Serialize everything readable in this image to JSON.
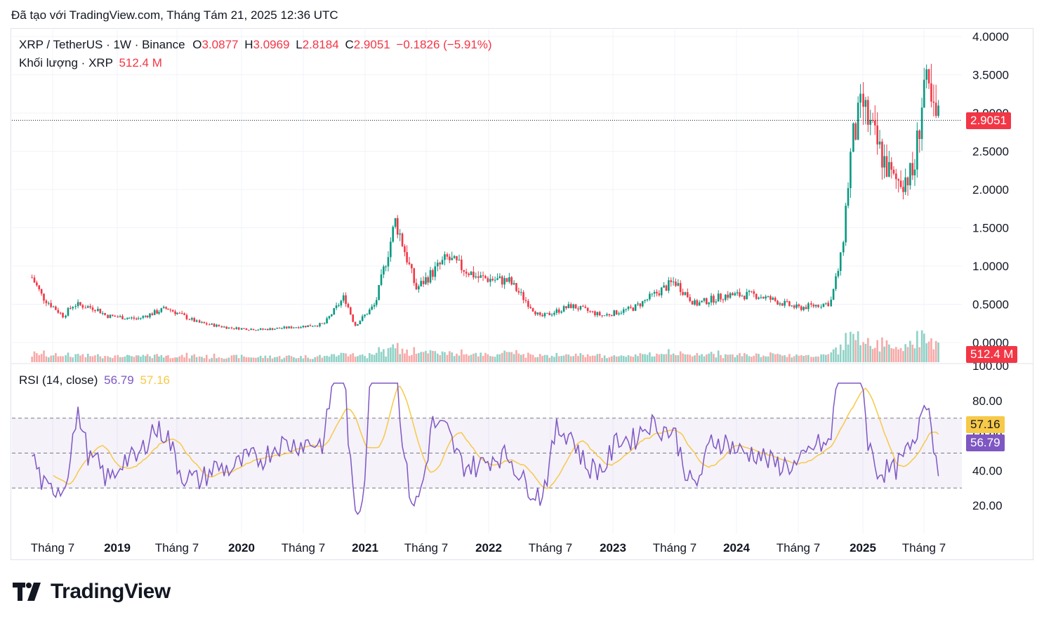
{
  "caption": "Đã tạo với TradingView.com, Tháng Tám 21, 2025 12:36 UTC",
  "legend": {
    "symbol": "XRP / TetherUS · 1W · Binance",
    "o_label": "O",
    "o_val": "3.0877",
    "h_label": "H",
    "h_val": "3.0969",
    "l_label": "L",
    "l_val": "2.8184",
    "c_label": "C",
    "c_val": "2.9051",
    "change": "−0.1826 (−5.91%)",
    "volume_label": "Khối lượng · XRP",
    "volume_val": "512.4 M"
  },
  "rsi_legend": {
    "label": "RSI (14, close)",
    "rsi": "56.79",
    "ma": "57.16"
  },
  "tags": {
    "price": "2.9051",
    "volume": "512.4 M",
    "rsi_ma": "57.16",
    "rsi": "56.79"
  },
  "logo_text": "TradingView",
  "colors": {
    "up": "#089981",
    "down": "#f23645",
    "rsi": "#7e57c2",
    "rsi_ma": "#f7c948",
    "volume_up": "#8fd1c6",
    "volume_down": "#f7a9a7"
  },
  "chart_data": {
    "type": "candlestick",
    "price_axis": {
      "ticks": [
        "4.0000",
        "3.5000",
        "3.0000",
        "2.5000",
        "2.0000",
        "1.5000",
        "1.0000",
        "0.5000",
        "0.0000"
      ],
      "range": [
        0,
        4
      ]
    },
    "x_axis": {
      "labels": [
        {
          "text": "Tháng 7",
          "bold": false,
          "date": "2018-07"
        },
        {
          "text": "2019",
          "bold": true,
          "date": "2019-01"
        },
        {
          "text": "Tháng 7",
          "bold": false,
          "date": "2019-07"
        },
        {
          "text": "2020",
          "bold": true,
          "date": "2020-01"
        },
        {
          "text": "Tháng 7",
          "bold": false,
          "date": "2020-07"
        },
        {
          "text": "2021",
          "bold": true,
          "date": "2021-01"
        },
        {
          "text": "Tháng 7",
          "bold": false,
          "date": "2021-07"
        },
        {
          "text": "2022",
          "bold": true,
          "date": "2022-01"
        },
        {
          "text": "Tháng 7",
          "bold": false,
          "date": "2022-07"
        },
        {
          "text": "2023",
          "bold": true,
          "date": "2023-01"
        },
        {
          "text": "Tháng 7",
          "bold": false,
          "date": "2023-07"
        },
        {
          "text": "2024",
          "bold": true,
          "date": "2024-01"
        },
        {
          "text": "Tháng 7",
          "bold": false,
          "date": "2024-07"
        },
        {
          "text": "2025",
          "bold": true,
          "date": "2025-01"
        },
        {
          "text": "Tháng 7",
          "bold": false,
          "date": "2025-07"
        }
      ]
    },
    "price_series_approx": [
      [
        "2018-05",
        0.85
      ],
      [
        "2018-06",
        0.6
      ],
      [
        "2018-08",
        0.35
      ],
      [
        "2018-09",
        0.5
      ],
      [
        "2018-11",
        0.45
      ],
      [
        "2018-12",
        0.35
      ],
      [
        "2019-03",
        0.31
      ],
      [
        "2019-06",
        0.45
      ],
      [
        "2019-09",
        0.26
      ],
      [
        "2019-12",
        0.19
      ],
      [
        "2020-03",
        0.17
      ],
      [
        "2020-06",
        0.2
      ],
      [
        "2020-09",
        0.24
      ],
      [
        "2020-11",
        0.6
      ],
      [
        "2020-12",
        0.22
      ],
      [
        "2021-02",
        0.5
      ],
      [
        "2021-04",
        1.6
      ],
      [
        "2021-06",
        0.7
      ],
      [
        "2021-09",
        1.1
      ],
      [
        "2021-12",
        0.85
      ],
      [
        "2022-03",
        0.8
      ],
      [
        "2022-06",
        0.33
      ],
      [
        "2022-09",
        0.48
      ],
      [
        "2022-12",
        0.35
      ],
      [
        "2023-03",
        0.45
      ],
      [
        "2023-07",
        0.8
      ],
      [
        "2023-09",
        0.5
      ],
      [
        "2023-12",
        0.62
      ],
      [
        "2024-03",
        0.62
      ],
      [
        "2024-07",
        0.45
      ],
      [
        "2024-10",
        0.52
      ],
      [
        "2024-11",
        1.1
      ],
      [
        "2024-12",
        2.6
      ],
      [
        "2025-01",
        3.1
      ],
      [
        "2025-02",
        2.7
      ],
      [
        "2025-04",
        2.1
      ],
      [
        "2025-06",
        2.2
      ],
      [
        "2025-07",
        3.4
      ],
      [
        "2025-08",
        2.91
      ]
    ],
    "volume_unit": "M",
    "rsi": {
      "ticks": [
        "100.00",
        "80.00",
        "60.00",
        "40.00",
        "20.00"
      ],
      "range": [
        0,
        100
      ],
      "bands": [
        70,
        50,
        30
      ],
      "last": 56.79,
      "ma_last": 57.16
    }
  }
}
